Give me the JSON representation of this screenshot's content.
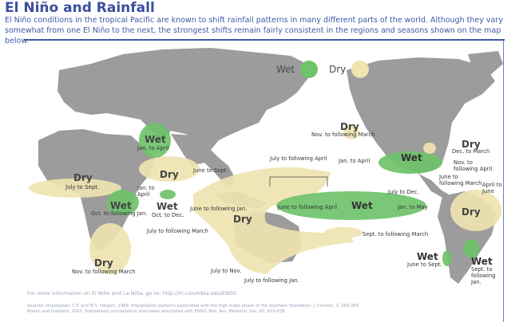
{
  "title": "El Niño and Rainfall",
  "intro": "El Niño conditions in the tropical Pacific are known to shift rainfall patterns in many different parts of the world. Although they vary somewhat from one El Niño to the next, the strongest shifts remain fairly consistent in the regions and seasons shown on the map below.",
  "legend": {
    "wet": "Wet",
    "dry": "Dry",
    "wet_color": "#6fc36b",
    "dry_color": "#efe3b0"
  },
  "colors": {
    "wet": "#6fc36b",
    "dry": "#efe3b0",
    "ocean": "#ffffff",
    "land": "#9c9c9c"
  },
  "regions": {
    "nw_africa_dry": {
      "label": "Dry",
      "season": "July to Sept."
    },
    "east_europe_wet": {
      "label": "Wet",
      "season": "Jan. to April"
    },
    "mideast_dry": {
      "label": "Dry",
      "season": "June to Sept."
    },
    "east_africa_wet": {
      "label": "Wet",
      "season": "Oct. to following Jan."
    },
    "horn_wet": {
      "label": "Wet",
      "season": "Oct. to Dec."
    },
    "horn_jan": {
      "season": "Jan. to April"
    },
    "s_africa_dry": {
      "label": "Dry",
      "season": "Nov. to following March"
    },
    "indo_dry": {
      "label": "Dry",
      "season": "June to following Jan."
    },
    "indo_july": {
      "season": "July to following April"
    },
    "indo_july_march": {
      "season": "July to following March"
    },
    "indo_july_nov": {
      "season": "July to Nov."
    },
    "indo_july_jan": {
      "season": "July to following Jan."
    },
    "hawaii_dry": {
      "label": "Dry",
      "season": "Nov. to following March"
    },
    "pacific_wet": {
      "label": "Wet",
      "season_left": "June to following April",
      "season_right": "Jan. to May"
    },
    "sept_march": {
      "season": "Sept. to following March"
    },
    "us_wet": {
      "label": "Wet",
      "season": "Jan. to April"
    },
    "us_dry": {
      "label": "Dry",
      "season": "Dec. to March"
    },
    "us_nov": {
      "season": "Nov. to following April"
    },
    "ca_july": {
      "season": "July to Dec."
    },
    "ca_june": {
      "season": "June to following March"
    },
    "brazil_dry": {
      "label": "Dry",
      "season": "April to June"
    },
    "sa_west_wet": {
      "label": "Wet",
      "season": "June to Sept."
    },
    "sa_east_wet": {
      "label": "Wet",
      "season": "Sept. to following Jan."
    }
  },
  "footer": {
    "info": "For more information on El Niño and La Niña, go to: http://iri.columbia.edu/ENSO",
    "sources": "Sources: Ropelewski, C.F. and M.S. Halpert, 1989: Precipitation patterns associated with the high index phase of the Southern Oscillation. J. Climate, 2, 268-284. Mason and Goddard, 2001: Probabilistic precipitation anomalies associated with ENSO. Bull. Am. Meteorol. Soc. 82, 619-638."
  }
}
